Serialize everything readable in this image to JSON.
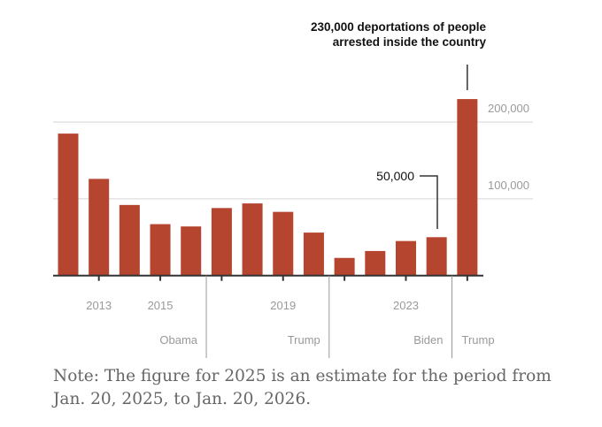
{
  "chart_data": {
    "type": "bar",
    "categories": [
      "2012",
      "2013",
      "2014",
      "2015",
      "2016",
      "2017",
      "2018",
      "2019",
      "2020",
      "2021",
      "2022",
      "2023",
      "2024",
      "2025"
    ],
    "values": [
      185000,
      126000,
      92000,
      67000,
      64000,
      88000,
      94000,
      83000,
      56000,
      23000,
      32000,
      45000,
      50000,
      230000
    ],
    "title": "",
    "xlabel": "",
    "ylabel": "",
    "ylim": [
      0,
      230000
    ],
    "yticks": [
      {
        "value": 100000,
        "label": "100,000"
      },
      {
        "value": 200000,
        "label": "200,000"
      }
    ],
    "xtick_labels": [
      {
        "year": "2013",
        "label": "2013"
      },
      {
        "year": "2015",
        "label": "2015"
      },
      {
        "year": "2019",
        "label": "2019"
      },
      {
        "year": "2023",
        "label": "2023"
      }
    ],
    "xticks": [
      "2013",
      "2015",
      "2017",
      "2019",
      "2021",
      "2023",
      "2025"
    ],
    "grid": true,
    "bar_color": "#b5452f",
    "eras": [
      {
        "label": "Obama",
        "end_after": "2016"
      },
      {
        "label": "Trump",
        "end_after": "2020"
      },
      {
        "label": "Biden",
        "end_after": "2024"
      },
      {
        "label": "Trump",
        "end_after": null
      }
    ],
    "annotations": [
      {
        "year": "2025",
        "lines": [
          "230,000 deportations of people",
          "arrested inside the country"
        ]
      },
      {
        "year": "2024",
        "text": "50,000"
      }
    ]
  },
  "note": "Note: The figure for 2025 is an estimate for the period from Jan. 20, 2025, to Jan. 20, 2026."
}
